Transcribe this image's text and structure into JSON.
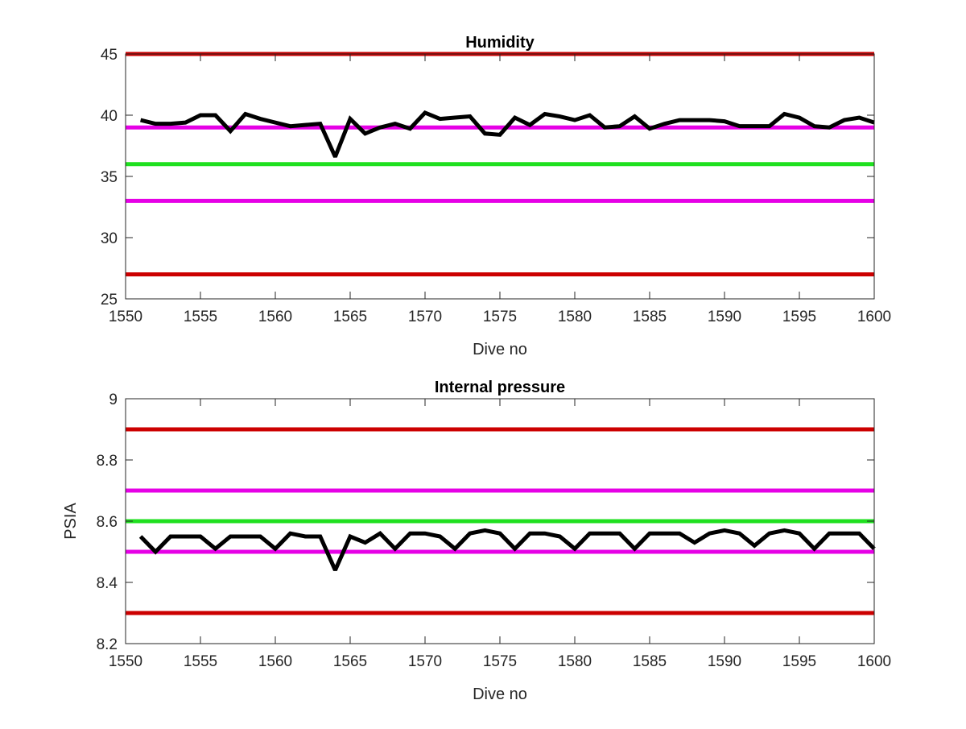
{
  "chart_data": [
    {
      "type": "line",
      "title": "Humidity",
      "xlabel": "Dive no",
      "ylabel": "",
      "xlim": [
        1550,
        1600
      ],
      "ylim": [
        25,
        45
      ],
      "xticks": [
        1550,
        1555,
        1560,
        1565,
        1570,
        1575,
        1580,
        1585,
        1590,
        1595,
        1600
      ],
      "yticks": [
        25,
        30,
        35,
        40,
        45
      ],
      "grid": false,
      "reference_lines": [
        {
          "y": 45,
          "color": "#cc0000"
        },
        {
          "y": 39,
          "color": "#e600e6"
        },
        {
          "y": 36,
          "color": "#1fe01f"
        },
        {
          "y": 33,
          "color": "#e600e6"
        },
        {
          "y": 27,
          "color": "#cc0000"
        }
      ],
      "series": [
        {
          "color": "#000000",
          "x": [
            1551,
            1552,
            1553,
            1554,
            1555,
            1556,
            1557,
            1558,
            1559,
            1560,
            1561,
            1562,
            1563,
            1564,
            1565,
            1566,
            1567,
            1568,
            1569,
            1570,
            1571,
            1572,
            1573,
            1574,
            1575,
            1576,
            1577,
            1578,
            1579,
            1580,
            1581,
            1582,
            1583,
            1584,
            1585,
            1586,
            1587,
            1588,
            1589,
            1590,
            1591,
            1592,
            1593,
            1594,
            1595,
            1596,
            1597,
            1598,
            1599,
            1600
          ],
          "y": [
            39.6,
            39.3,
            39.3,
            39.4,
            40.0,
            40.0,
            38.7,
            40.1,
            39.7,
            39.4,
            39.1,
            39.2,
            39.3,
            36.6,
            39.7,
            38.5,
            39.0,
            39.3,
            38.9,
            40.2,
            39.7,
            39.8,
            39.9,
            38.5,
            38.4,
            39.8,
            39.2,
            40.1,
            39.9,
            39.6,
            40.0,
            39.0,
            39.1,
            39.9,
            38.9,
            39.3,
            39.6,
            39.6,
            39.6,
            39.5,
            39.1,
            39.1,
            39.1,
            40.1,
            39.8,
            39.1,
            39.0,
            39.6,
            39.8,
            39.4
          ]
        }
      ]
    },
    {
      "type": "line",
      "title": "Internal pressure",
      "xlabel": "Dive no",
      "ylabel": "PSIA",
      "xlim": [
        1550,
        1600
      ],
      "ylim": [
        8.2,
        9.0
      ],
      "xticks": [
        1550,
        1555,
        1560,
        1565,
        1570,
        1575,
        1580,
        1585,
        1590,
        1595,
        1600
      ],
      "yticks": [
        8.2,
        8.4,
        8.6,
        8.8,
        9
      ],
      "grid": false,
      "reference_lines": [
        {
          "y": 8.9,
          "color": "#cc0000"
        },
        {
          "y": 8.7,
          "color": "#e600e6"
        },
        {
          "y": 8.6,
          "color": "#1fe01f"
        },
        {
          "y": 8.5,
          "color": "#e600e6"
        },
        {
          "y": 8.3,
          "color": "#cc0000"
        }
      ],
      "series": [
        {
          "color": "#000000",
          "x": [
            1551,
            1552,
            1553,
            1554,
            1555,
            1556,
            1557,
            1558,
            1559,
            1560,
            1561,
            1562,
            1563,
            1564,
            1565,
            1566,
            1567,
            1568,
            1569,
            1570,
            1571,
            1572,
            1573,
            1574,
            1575,
            1576,
            1577,
            1578,
            1579,
            1580,
            1581,
            1582,
            1583,
            1584,
            1585,
            1586,
            1587,
            1588,
            1589,
            1590,
            1591,
            1592,
            1593,
            1594,
            1595,
            1596,
            1597,
            1598,
            1599,
            1600
          ],
          "y": [
            8.55,
            8.5,
            8.55,
            8.55,
            8.55,
            8.51,
            8.55,
            8.55,
            8.55,
            8.51,
            8.56,
            8.55,
            8.55,
            8.44,
            8.55,
            8.53,
            8.56,
            8.51,
            8.56,
            8.56,
            8.55,
            8.51,
            8.56,
            8.57,
            8.56,
            8.51,
            8.56,
            8.56,
            8.55,
            8.51,
            8.56,
            8.56,
            8.56,
            8.51,
            8.56,
            8.56,
            8.56,
            8.53,
            8.56,
            8.57,
            8.56,
            8.52,
            8.56,
            8.57,
            8.56,
            8.51,
            8.56,
            8.56,
            8.56,
            8.51
          ]
        }
      ]
    }
  ]
}
